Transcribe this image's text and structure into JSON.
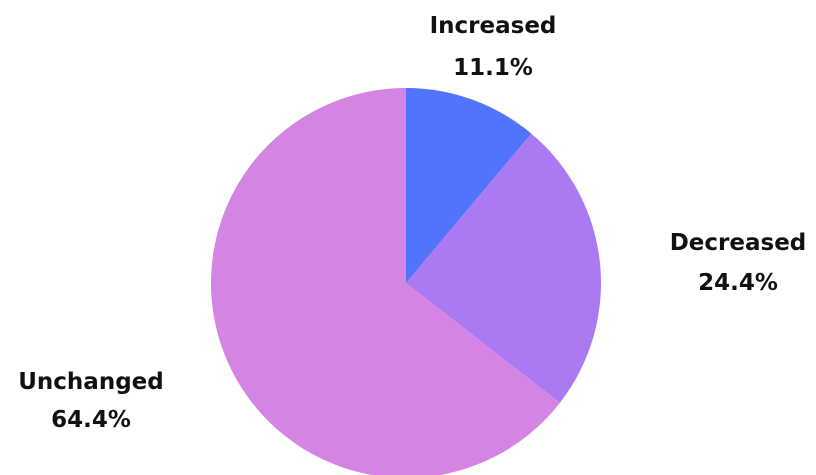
{
  "chart_data": {
    "type": "pie",
    "title": "",
    "start_angle_deg": 0,
    "direction": "clockwise",
    "legend": "none",
    "slices": [
      {
        "label": "Increased",
        "value": 11.1,
        "display": "11.1%",
        "color": "#5273fc"
      },
      {
        "label": "Decreased",
        "value": 24.4,
        "display": "24.4%",
        "color": "#a97af2"
      },
      {
        "label": "Unchanged",
        "value": 64.4,
        "display": "64.4%",
        "color": "#d484e2"
      }
    ]
  }
}
